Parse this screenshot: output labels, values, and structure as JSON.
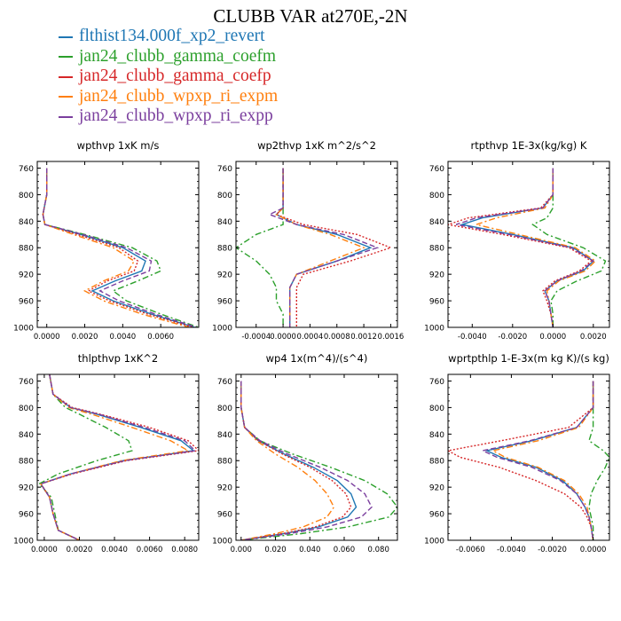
{
  "title": "CLUBB VAR at270E,-2N",
  "legend": [
    {
      "name": "flthist134.000f_xp2_revert",
      "color": "#1f77b4",
      "dash": "solid"
    },
    {
      "name": "jan24_clubb_gamma_coefm",
      "color": "#2ca02c",
      "dash": "dashdot"
    },
    {
      "name": "jan24_clubb_gamma_coefp",
      "color": "#d62728",
      "dash": "dot"
    },
    {
      "name": "jan24_clubb_wpxp_ri_expm",
      "color": "#ff7f0e",
      "dash": "dashdot"
    },
    {
      "name": "jan24_clubb_wpxp_ri_expp",
      "color": "#7b3f9e",
      "dash": "dash"
    }
  ],
  "chart_data": [
    {
      "type": "line",
      "title": "wpthvp  1xK m/s",
      "ylim": [
        1000,
        750
      ],
      "y_reversed": true,
      "xlim": [
        -0.0005,
        0.008
      ],
      "xticks": [
        0.0,
        0.002,
        0.004,
        0.006
      ],
      "xtick_labels": [
        "0.0000",
        "0.0020",
        "0.0040",
        "0.0060"
      ],
      "yticks": [
        760,
        800,
        840,
        880,
        920,
        960,
        1000
      ],
      "y": [
        760,
        800,
        830,
        845,
        860,
        880,
        900,
        915,
        930,
        945,
        960,
        980,
        1000
      ],
      "series": [
        {
          "name": "flthist134.000f_xp2_revert",
          "x": [
            0.0,
            0.0,
            -0.0002,
            -0.0001,
            0.0018,
            0.004,
            0.0052,
            0.005,
            0.0036,
            0.0024,
            0.0035,
            0.0055,
            0.0078
          ]
        },
        {
          "name": "jan24_clubb_gamma_coefm",
          "x": [
            0.0,
            0.0,
            -0.0002,
            -0.0001,
            0.002,
            0.0045,
            0.0058,
            0.006,
            0.0048,
            0.0035,
            0.0042,
            0.006,
            0.008
          ]
        },
        {
          "name": "jan24_clubb_gamma_coefp",
          "x": [
            0.0,
            0.0,
            -0.0002,
            -0.0001,
            0.0016,
            0.0038,
            0.0048,
            0.0046,
            0.0032,
            0.0022,
            0.0033,
            0.0053,
            0.0077
          ]
        },
        {
          "name": "jan24_clubb_wpxp_ri_expm",
          "x": [
            0.0,
            0.0,
            -0.0002,
            -0.0001,
            0.0014,
            0.0035,
            0.0046,
            0.0043,
            0.003,
            0.002,
            0.003,
            0.005,
            0.0075
          ]
        },
        {
          "name": "jan24_clubb_wpxp_ri_expp",
          "x": [
            0.0,
            0.0,
            -0.0002,
            -0.0001,
            0.0019,
            0.0042,
            0.0055,
            0.0054,
            0.004,
            0.0028,
            0.0038,
            0.0057,
            0.0079
          ]
        }
      ]
    },
    {
      "type": "line",
      "title": "wp2thvp  1xK m^2/s^2",
      "ylim": [
        1000,
        750
      ],
      "y_reversed": true,
      "xlim": [
        -0.0007,
        0.0017
      ],
      "xticks": [
        -0.0004,
        0.0,
        0.0004,
        0.0008,
        0.0012,
        0.0016
      ],
      "xtick_labels": [
        "-0.0004",
        "0.0000",
        "0.0004",
        "0.0008",
        "0.0012",
        "0.0016"
      ],
      "yticks": [
        760,
        800,
        840,
        880,
        920,
        960,
        1000
      ],
      "y": [
        760,
        800,
        820,
        830,
        845,
        860,
        880,
        900,
        920,
        940,
        960,
        980,
        1000
      ],
      "series": [
        {
          "name": "flthist134.000f_xp2_revert",
          "x": [
            0.0,
            0.0,
            0.0,
            -0.0001,
            0.0002,
            0.0008,
            0.0013,
            0.0008,
            0.0002,
            0.0001,
            0.0001,
            0.0001,
            0.0001
          ]
        },
        {
          "name": "jan24_clubb_gamma_coefm",
          "x": [
            0.0,
            0.0,
            0.0,
            0.0,
            0.0,
            -0.0004,
            -0.0007,
            -0.0004,
            -0.0002,
            -0.0001,
            -0.0001,
            0.0,
            0.0
          ]
        },
        {
          "name": "jan24_clubb_gamma_coefp",
          "x": [
            0.0,
            0.0,
            0.0,
            -0.0001,
            0.0003,
            0.0011,
            0.0016,
            0.001,
            0.0003,
            0.0002,
            0.0002,
            0.0002,
            0.0002
          ]
        },
        {
          "name": "jan24_clubb_wpxp_ri_expm",
          "x": [
            0.0,
            0.0,
            0.0,
            -0.0001,
            0.0002,
            0.0007,
            0.0012,
            0.0007,
            0.0002,
            0.0001,
            0.0001,
            0.0001,
            0.0001
          ]
        },
        {
          "name": "jan24_clubb_wpxp_ri_expp",
          "x": [
            0.0,
            0.0,
            0.0,
            -0.0002,
            0.0002,
            0.0009,
            0.0014,
            0.0008,
            0.0002,
            0.0001,
            0.0001,
            0.0001,
            0.0001
          ]
        }
      ]
    },
    {
      "type": "line",
      "title": "rtpthvp  1E-3x(kg/kg) K",
      "ylim": [
        1000,
        750
      ],
      "y_reversed": true,
      "xlim": [
        -0.0052,
        0.0028
      ],
      "xticks": [
        -0.004,
        -0.002,
        0.0,
        0.002
      ],
      "xtick_labels": [
        "-0.0040",
        "-0.0020",
        "0.0000",
        "0.0020"
      ],
      "yticks": [
        760,
        800,
        840,
        880,
        920,
        960,
        1000
      ],
      "y": [
        760,
        800,
        820,
        835,
        845,
        860,
        880,
        900,
        915,
        930,
        945,
        960,
        980,
        1000
      ],
      "series": [
        {
          "name": "flthist134.000f_xp2_revert",
          "x": [
            0.0,
            0.0,
            -0.0005,
            -0.0035,
            -0.0045,
            -0.002,
            0.001,
            0.002,
            0.0015,
            0.0002,
            -0.0004,
            -0.0002,
            -0.0001,
            0.0
          ]
        },
        {
          "name": "jan24_clubb_gamma_coefm",
          "x": [
            0.0,
            0.0,
            0.0,
            -0.0003,
            -0.001,
            -0.0003,
            0.0015,
            0.0026,
            0.0024,
            0.0012,
            0.0002,
            -0.0001,
            0.0,
            0.0
          ]
        },
        {
          "name": "jan24_clubb_gamma_coefp",
          "x": [
            0.0,
            0.0,
            -0.0006,
            -0.0042,
            -0.0052,
            -0.0025,
            0.0008,
            0.0019,
            0.0013,
            0.0001,
            -0.0005,
            -0.0003,
            -0.0001,
            0.0
          ]
        },
        {
          "name": "jan24_clubb_wpxp_ri_expm",
          "x": [
            0.0,
            0.0,
            -0.0004,
            -0.0028,
            -0.0038,
            -0.0017,
            0.0011,
            0.0021,
            0.0016,
            0.0003,
            -0.0003,
            -0.0002,
            -0.0001,
            0.0
          ]
        },
        {
          "name": "jan24_clubb_wpxp_ri_expp",
          "x": [
            0.0,
            0.0,
            -0.0005,
            -0.0038,
            -0.0048,
            -0.0022,
            0.0009,
            0.002,
            0.0014,
            0.0002,
            -0.0004,
            -0.0002,
            -0.0001,
            0.0
          ]
        }
      ]
    },
    {
      "type": "line",
      "title": "thlpthvp  1xK^2",
      "ylim": [
        1000,
        750
      ],
      "y_reversed": true,
      "xlim": [
        -0.0004,
        0.0088
      ],
      "xticks": [
        0.0,
        0.002,
        0.004,
        0.006,
        0.008
      ],
      "xtick_labels": [
        "0.0000",
        "0.0020",
        "0.0040",
        "0.0060",
        "0.0080"
      ],
      "yticks": [
        760,
        800,
        840,
        880,
        920,
        960,
        1000
      ],
      "y": [
        750,
        780,
        800,
        810,
        830,
        850,
        865,
        880,
        900,
        915,
        935,
        960,
        985,
        1000
      ],
      "series": [
        {
          "name": "flthist134.000f_xp2_revert",
          "x": [
            0.0003,
            0.0005,
            0.0015,
            0.003,
            0.0055,
            0.0078,
            0.0085,
            0.0045,
            0.0015,
            -0.0002,
            0.0003,
            0.0005,
            0.0008,
            0.002
          ]
        },
        {
          "name": "jan24_clubb_gamma_coefm",
          "x": [
            0.0003,
            0.0005,
            0.0012,
            0.002,
            0.0035,
            0.0048,
            0.005,
            0.003,
            0.0008,
            -0.0003,
            0.0004,
            0.0006,
            0.0008,
            0.002
          ]
        },
        {
          "name": "jan24_clubb_gamma_coefp",
          "x": [
            0.0003,
            0.0005,
            0.0016,
            0.0032,
            0.006,
            0.0082,
            0.0088,
            0.0047,
            0.0016,
            -0.0002,
            0.0003,
            0.0005,
            0.0008,
            0.002
          ]
        },
        {
          "name": "jan24_clubb_wpxp_ri_expm",
          "x": [
            0.0003,
            0.0005,
            0.0014,
            0.0027,
            0.005,
            0.0072,
            0.0082,
            0.0044,
            0.0015,
            -0.0002,
            0.0003,
            0.0005,
            0.0008,
            0.002
          ]
        },
        {
          "name": "jan24_clubb_wpxp_ri_expp",
          "x": [
            0.0003,
            0.0005,
            0.0015,
            0.0031,
            0.0057,
            0.008,
            0.0086,
            0.0046,
            0.0015,
            -0.0002,
            0.0003,
            0.0005,
            0.0008,
            0.002
          ]
        }
      ]
    },
    {
      "type": "line",
      "title": "wp4  1x(m^4)/(s^4)",
      "ylim": [
        1000,
        750
      ],
      "y_reversed": true,
      "xlim": [
        -0.003,
        0.091
      ],
      "xticks": [
        0.0,
        0.02,
        0.04,
        0.06,
        0.08
      ],
      "xtick_labels": [
        "0.000",
        "0.020",
        "0.040",
        "0.060",
        "0.080"
      ],
      "yticks": [
        760,
        800,
        840,
        880,
        920,
        960,
        1000
      ],
      "y": [
        760,
        800,
        830,
        850,
        870,
        890,
        910,
        930,
        950,
        965,
        980,
        990,
        1000
      ],
      "series": [
        {
          "name": "flthist134.000f_xp2_revert",
          "x": [
            0.0,
            0.0,
            0.002,
            0.01,
            0.025,
            0.042,
            0.056,
            0.064,
            0.067,
            0.062,
            0.045,
            0.025,
            0.0
          ]
        },
        {
          "name": "jan24_clubb_gamma_coefm",
          "x": [
            0.0,
            0.0,
            0.002,
            0.011,
            0.03,
            0.052,
            0.072,
            0.085,
            0.091,
            0.086,
            0.062,
            0.035,
            0.0
          ]
        },
        {
          "name": "jan24_clubb_gamma_coefp",
          "x": [
            0.0,
            0.0,
            0.002,
            0.01,
            0.024,
            0.04,
            0.053,
            0.061,
            0.064,
            0.059,
            0.043,
            0.024,
            0.0
          ]
        },
        {
          "name": "jan24_clubb_wpxp_ri_expm",
          "x": [
            0.0,
            0.0,
            0.002,
            0.009,
            0.02,
            0.033,
            0.043,
            0.05,
            0.054,
            0.05,
            0.036,
            0.02,
            0.0
          ]
        },
        {
          "name": "jan24_clubb_wpxp_ri_expp",
          "x": [
            0.0,
            0.0,
            0.002,
            0.011,
            0.027,
            0.046,
            0.062,
            0.072,
            0.076,
            0.07,
            0.05,
            0.028,
            0.0
          ]
        }
      ]
    },
    {
      "type": "line",
      "title": "wprtpthlp  1-E-3x(m kg K)/(s kg)",
      "ylim": [
        1000,
        750
      ],
      "y_reversed": true,
      "xlim": [
        -0.0071,
        0.0008
      ],
      "xticks": [
        -0.006,
        -0.004,
        -0.002,
        0.0
      ],
      "xtick_labels": [
        "-0.0060",
        "-0.0040",
        "-0.0020",
        "0.0000"
      ],
      "yticks": [
        760,
        800,
        840,
        880,
        920,
        960,
        1000
      ],
      "y": [
        760,
        800,
        830,
        850,
        865,
        875,
        890,
        910,
        930,
        950,
        965,
        980,
        1000
      ],
      "series": [
        {
          "name": "flthist134.000f_xp2_revert",
          "x": [
            0.0,
            0.0,
            -0.0008,
            -0.003,
            -0.0052,
            -0.0045,
            -0.0028,
            -0.0015,
            -0.0008,
            -0.0004,
            -0.0002,
            -0.0001,
            0.0
          ]
        },
        {
          "name": "jan24_clubb_gamma_coefm",
          "x": [
            0.0,
            0.0,
            0.0,
            -0.0002,
            0.0005,
            0.0008,
            0.0006,
            0.0002,
            -0.0001,
            -0.0002,
            -0.0001,
            0.0,
            0.0
          ]
        },
        {
          "name": "jan24_clubb_gamma_coefp",
          "x": [
            0.0,
            0.0,
            -0.0012,
            -0.0045,
            -0.0071,
            -0.0065,
            -0.0046,
            -0.0028,
            -0.0014,
            -0.0006,
            -0.0003,
            -0.0001,
            0.0
          ]
        },
        {
          "name": "jan24_clubb_wpxp_ri_expm",
          "x": [
            0.0,
            0.0,
            -0.0007,
            -0.0027,
            -0.0049,
            -0.0043,
            -0.0027,
            -0.0014,
            -0.0007,
            -0.0003,
            -0.0002,
            -0.0001,
            0.0
          ]
        },
        {
          "name": "jan24_clubb_wpxp_ri_expp",
          "x": [
            0.0,
            0.0,
            -0.0008,
            -0.0031,
            -0.0054,
            -0.0047,
            -0.003,
            -0.0016,
            -0.0008,
            -0.0004,
            -0.0002,
            -0.0001,
            0.0
          ]
        }
      ]
    }
  ]
}
